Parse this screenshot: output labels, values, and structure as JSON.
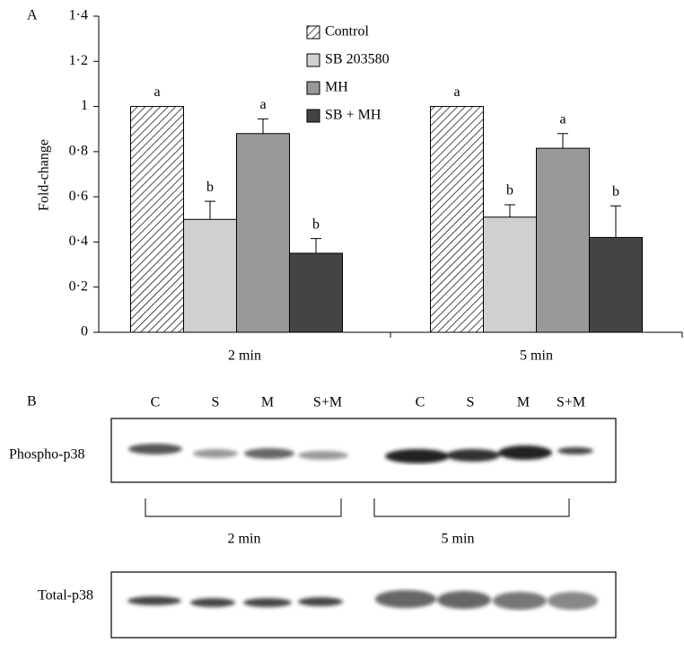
{
  "chart_data": {
    "type": "bar",
    "panel_label": "A",
    "y_label": "Fold-change",
    "categories": [
      "2 min",
      "5 min"
    ],
    "series": [
      {
        "name": "Control",
        "color": "#ffffff",
        "pattern": "hatch",
        "values": [
          1.0,
          1.0
        ],
        "letters": [
          "a",
          "a"
        ]
      },
      {
        "name": "SB 203580",
        "color": "#d0d0d0",
        "values": [
          0.5,
          0.51
        ],
        "errors": [
          0.08,
          0.055
        ],
        "letters": [
          "b",
          "b"
        ]
      },
      {
        "name": "MH",
        "color": "#999999",
        "values": [
          0.88,
          0.815
        ],
        "errors": [
          0.065,
          0.065
        ],
        "letters": [
          "a",
          "a"
        ]
      },
      {
        "name": "SB + MH",
        "color": "#444444",
        "values": [
          0.35,
          0.42
        ],
        "errors": [
          0.065,
          0.14
        ],
        "letters": [
          "b",
          "b"
        ]
      }
    ],
    "ylim": [
      0,
      1.4
    ],
    "yticks": [
      0,
      {
        "value": 0.2,
        "label": "0·2"
      },
      {
        "value": 0.4,
        "label": "0·4"
      },
      {
        "value": 0.6,
        "label": "0·6"
      },
      {
        "value": 0.8,
        "label": "0·8"
      },
      1,
      {
        "value": 1.2,
        "label": "1·2"
      },
      {
        "value": 1.4,
        "label": "1·4"
      }
    ]
  },
  "blot": {
    "panel_label": "B",
    "lanes": [
      "C",
      "S",
      "M",
      "S+M",
      "C",
      "S",
      "M",
      "S+M"
    ],
    "phospho_label": "Phospho-p38",
    "total_label": "Total-p38",
    "group_labels": [
      "2 min",
      "5 min"
    ]
  }
}
